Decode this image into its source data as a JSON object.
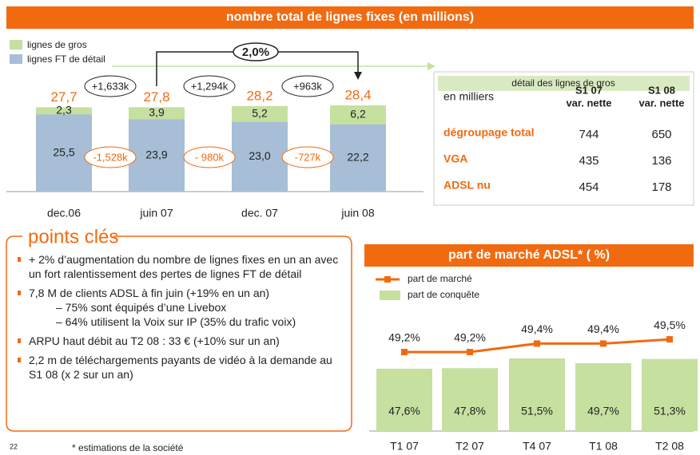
{
  "chart_data": [
    {
      "type": "stacked_bar",
      "title": "nombre total de lignes fixes (en millions)",
      "categories": [
        "dec.06",
        "juin 07",
        "dec. 07",
        "juin 08"
      ],
      "series": [
        {
          "name": "lignes FT de détail",
          "color": "#a7bed6",
          "values": [
            25.5,
            23.9,
            23.0,
            22.2
          ],
          "value_labels": [
            "25,5",
            "23,9",
            "23,0",
            "22,2"
          ]
        },
        {
          "name": "lignes de gros",
          "color": "#c6e0a0",
          "values": [
            2.3,
            3.9,
            5.2,
            6.2
          ],
          "value_labels": [
            "2,3",
            "3,9",
            "5,2",
            "6,2"
          ]
        }
      ],
      "total_labels": [
        "27,7",
        "27,8",
        "28,2",
        "28,4"
      ],
      "gros_changes": [
        "+1,633k",
        "+1,294k",
        "+963k"
      ],
      "detail_changes": [
        "-1,528k",
        "- 980k",
        "-727k"
      ],
      "growth_label": "2,0%"
    },
    {
      "type": "bar_line",
      "title": "part de marché ADSL* ( %)",
      "categories": [
        "T1 07",
        "T2 07",
        "T4 07",
        "T1 08",
        "T2 08"
      ],
      "series": [
        {
          "name": "part de marché",
          "type": "line",
          "color": "#f26a10",
          "values": [
            49.2,
            49.2,
            49.4,
            49.4,
            49.5
          ],
          "value_labels": [
            "49,2%",
            "49,2%",
            "49,4%",
            "49,4%",
            "49,5%"
          ]
        },
        {
          "name": "part de conquête",
          "type": "bar",
          "color": "#c6e0a0",
          "values": [
            47.6,
            47.8,
            51.5,
            49.7,
            51.3
          ],
          "value_labels": [
            "47,6%",
            "47,8%",
            "51,5%",
            "49,7%",
            "51,3%"
          ]
        }
      ]
    }
  ],
  "table": {
    "title": "détail des lignes de gros",
    "header": [
      "en milliers",
      [
        "S1 07",
        "var. nette"
      ],
      [
        "S1 08",
        "var. nette"
      ]
    ],
    "rows": [
      [
        "dégroupage total",
        744,
        650
      ],
      [
        "VGA",
        435,
        136
      ],
      [
        "ADSL nu",
        454,
        178
      ]
    ]
  },
  "points": {
    "title": "points clés",
    "items": [
      {
        "text": "+ 2% d’augmentation du nombre de lignes fixes en un an avec un fort ralentissement des pertes de lignes FT de détail",
        "sub": []
      },
      {
        "text": "7,8 M de clients ADSL à fin juin (+19% en un an)",
        "sub": [
          "– 75% sont équipés d’une Livebox",
          "– 64% utilisent la Voix sur IP (35% du trafic voix)"
        ]
      },
      {
        "text": "ARPU haut débit au T2 08 : 33 € (+10% sur un an)",
        "sub": []
      },
      {
        "text": "2,2 m de téléchargements payants de vidéo à la demande au S1 08 (x 2 sur un an)",
        "sub": []
      }
    ]
  },
  "footer": {
    "page": "22",
    "note": "* estimations de la société"
  }
}
